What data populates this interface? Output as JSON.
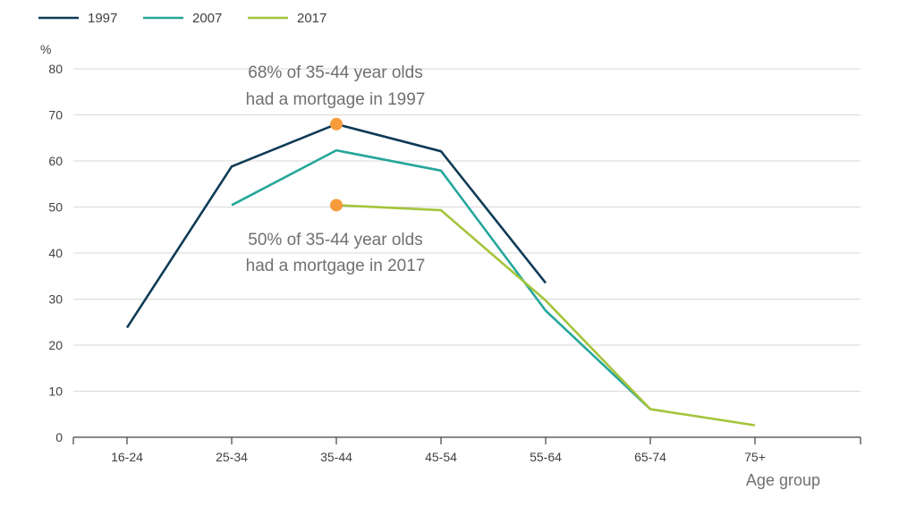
{
  "chart_data": {
    "type": "line",
    "categories": [
      "16-24",
      "25-34",
      "35-44",
      "45-54",
      "55-64",
      "65-74",
      "75+"
    ],
    "series": [
      {
        "name": "1997",
        "color": "#0f3b57",
        "values": [
          23.8,
          58.8,
          68,
          62.1,
          33.5,
          null,
          null
        ]
      },
      {
        "name": "2007",
        "color": "#26a69a",
        "values": [
          null,
          50.4,
          62.3,
          57.9,
          27.5,
          6.1,
          null
        ]
      },
      {
        "name": "2017",
        "color": "#a4c43b",
        "values": [
          null,
          null,
          50.4,
          49.3,
          29.7,
          6.1,
          2.6
        ]
      }
    ],
    "highlight_points": [
      {
        "category": "35-44",
        "value": 68,
        "color": "#f79c3b"
      },
      {
        "category": "35-44",
        "value": 50.4,
        "color": "#f79c3b"
      }
    ],
    "annotations": [
      {
        "lines": [
          "68% of 35-44 year olds",
          "had a mortgage in 1997"
        ]
      },
      {
        "lines": [
          "50% of 35-44 year olds",
          "had a mortgage in 2017"
        ]
      }
    ],
    "ylabel": "%",
    "xlabel": "Age group",
    "ylim": [
      0,
      80
    ],
    "yticks": [
      0,
      10,
      20,
      30,
      40,
      50,
      60,
      70,
      80
    ],
    "grid": true,
    "legend_position": "top-left"
  }
}
